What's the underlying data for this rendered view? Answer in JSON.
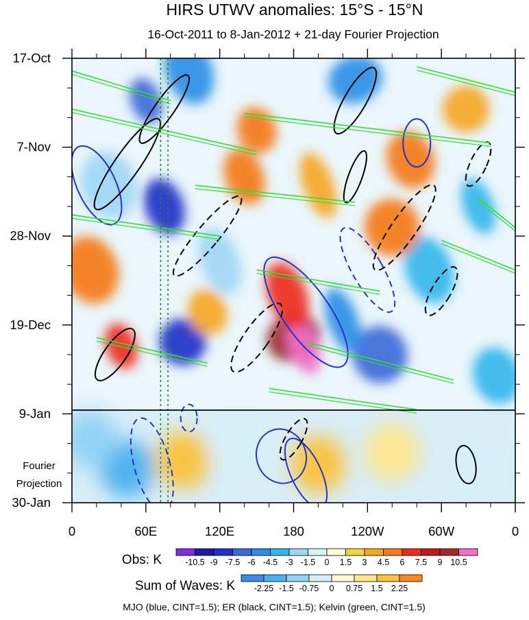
{
  "chart_data": {
    "type": "heatmap",
    "title": "HIRS UTWV anomalies: 15°S - 15°N",
    "subtitle": "16-Oct-2011 to 8-Jan-2012 + 21-day Fourier Projection",
    "x_tick_labels": [
      "0",
      "60E",
      "120E",
      "180",
      "120W",
      "60W",
      "0"
    ],
    "x_tick_degrees": [
      0,
      60,
      120,
      180,
      240,
      300,
      360
    ],
    "xlim": [
      0,
      360
    ],
    "y_tick_labels": [
      "17-Oct",
      "7-Nov",
      "28-Nov",
      "19-Dec",
      "9-Jan",
      "30-Jan"
    ],
    "y_tick_days": [
      0,
      21,
      42,
      63,
      84,
      105
    ],
    "ylim": [
      0,
      105
    ],
    "projection_start_day": 84,
    "projection_label": [
      "Fourier",
      "Projection"
    ],
    "reference_lines_deg": [
      72,
      78
    ],
    "obs_colorbar": {
      "label": "Obs: K",
      "levels": [
        "-10.5",
        "-9",
        "-7.5",
        "-6",
        "-4.5",
        "-3",
        "-1.5",
        "0",
        "1.5",
        "3",
        "4.5",
        "6",
        "7.5",
        "9",
        "10.5"
      ],
      "colors": [
        "#7d2ee0",
        "#1a1aa8",
        "#2030c8",
        "#3c6ad8",
        "#2a8ee6",
        "#33b6ec",
        "#9fd6f4",
        "#d8f2fa",
        "#fffbd2",
        "#f7d23a",
        "#f6a623",
        "#f47a1a",
        "#ee2a20",
        "#c41818",
        "#a02a2a",
        "#f070c8"
      ]
    },
    "waves_colorbar": {
      "label": "Sum of Waves: K",
      "levels": [
        "-2.25",
        "-1.5",
        "-0.75",
        "0",
        "0.75",
        "1.5",
        "2.25"
      ],
      "colors": [
        "#3a8ee6",
        "#4ab0ee",
        "#8fd2f4",
        "#d6f0f8",
        "#fffbd2",
        "#fde68a",
        "#f9c23a",
        "#f78a1e"
      ]
    },
    "contour_legend": "MJO (blue, CINT=1.5); ER (black, CINT=1.5); Kelvin (green, CINT=1.5)",
    "obs_blobs": [
      {
        "lon": 60,
        "day": 10,
        "v": -7.5
      },
      {
        "lon": 75,
        "day": 35,
        "v": -9
      },
      {
        "lon": 95,
        "day": 3,
        "v": -6
      },
      {
        "lon": 180,
        "day": 66,
        "v": 9
      },
      {
        "lon": 188,
        "day": 68,
        "v": 10.5
      },
      {
        "lon": 175,
        "day": 56,
        "v": 6
      },
      {
        "lon": 90,
        "day": 67,
        "v": -9
      },
      {
        "lon": 250,
        "day": 70,
        "v": -7.5
      },
      {
        "lon": 220,
        "day": 62,
        "v": -6
      },
      {
        "lon": 150,
        "day": 17,
        "v": 4.5
      },
      {
        "lon": 275,
        "day": 24,
        "v": 4.5
      },
      {
        "lon": 15,
        "day": 50,
        "v": 4.5
      },
      {
        "lon": 40,
        "day": 68,
        "v": 6
      },
      {
        "lon": 140,
        "day": 28,
        "v": 4.5
      },
      {
        "lon": 290,
        "day": 50,
        "v": -4.5
      },
      {
        "lon": 230,
        "day": 5,
        "v": -6
      },
      {
        "lon": 330,
        "day": 35,
        "v": -4.5
      },
      {
        "lon": 120,
        "day": 48,
        "v": -3
      },
      {
        "lon": 320,
        "day": 12,
        "v": 3
      },
      {
        "lon": 260,
        "day": 40,
        "v": 4.5
      },
      {
        "lon": 200,
        "day": 30,
        "v": 3
      },
      {
        "lon": 110,
        "day": 60,
        "v": 3
      },
      {
        "lon": 345,
        "day": 75,
        "v": -4.5
      },
      {
        "lon": 30,
        "day": 30,
        "v": -3
      }
    ],
    "proj_blobs": [
      {
        "lon": 45,
        "day": 97,
        "v": -2.25
      },
      {
        "lon": 15,
        "day": 90,
        "v": -1.5
      },
      {
        "lon": 90,
        "day": 95,
        "v": 1.5
      },
      {
        "lon": 200,
        "day": 96,
        "v": 1.5
      },
      {
        "lon": 135,
        "day": 92,
        "v": -0.75
      },
      {
        "lon": 260,
        "day": 93,
        "v": 0.75
      },
      {
        "lon": 330,
        "day": 98,
        "v": -0.75
      }
    ]
  }
}
